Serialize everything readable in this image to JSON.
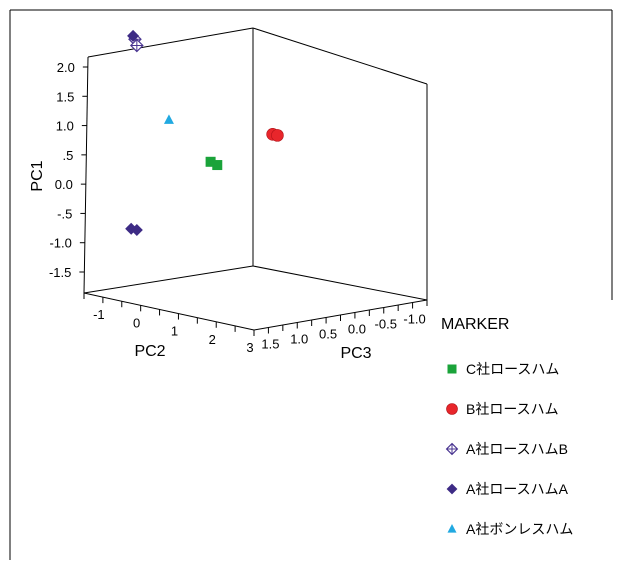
{
  "chart_data": {
    "type": "scatter",
    "dimensions": 3,
    "axes": {
      "pc1": {
        "label": "PC1",
        "ticks": [
          "2.0",
          "1.5",
          "1.0",
          ".5",
          "0.0",
          "-.5",
          "-1.0",
          "-1.5"
        ]
      },
      "pc2": {
        "label": "PC2",
        "ticks": [
          "-1",
          "0",
          "1",
          "2",
          "3"
        ]
      },
      "pc3": {
        "label": "PC3",
        "ticks": [
          "1.5",
          "1.0",
          "0.5",
          "0.0",
          "-0.5",
          "-1.0"
        ]
      }
    },
    "legend": {
      "title": "MARKER",
      "placement": "right",
      "entries": [
        {
          "label": "C社ロースハム",
          "marker": "square",
          "color": "#1aa33a"
        },
        {
          "label": "B社ロースハム",
          "marker": "circle",
          "color": "#e8262b"
        },
        {
          "label": "A社ロースハムB",
          "marker": "diamond-open",
          "color": "#4a3591"
        },
        {
          "label": "A社ロースハムA",
          "marker": "diamond",
          "color": "#3d2b85"
        },
        {
          "label": "A社ボンレスハム",
          "marker": "triangle",
          "color": "#21a9e1"
        }
      ]
    },
    "series": [
      {
        "name": "C社ロースハム",
        "points": [
          {
            "pc1": -0.15,
            "pc2": 2.15,
            "pc3": 1.2
          },
          {
            "pc1": -0.2,
            "pc2": 2.25,
            "pc3": 1.15
          }
        ]
      },
      {
        "name": "B社ロースハム",
        "points": [
          {
            "pc1": 0.3,
            "pc2": 2.8,
            "pc3": 0.55
          },
          {
            "pc1": 0.28,
            "pc2": 2.85,
            "pc3": 0.5
          }
        ]
      },
      {
        "name": "A社ロースハムB",
        "points": [
          {
            "pc1": 1.7,
            "pc2": 0.3,
            "pc3": 1.3
          },
          {
            "pc1": 1.6,
            "pc2": 0.35,
            "pc3": 1.3
          }
        ]
      },
      {
        "name": "A社ロースハムA",
        "points": [
          {
            "pc1": 1.75,
            "pc2": 0.25,
            "pc3": 1.3
          },
          {
            "pc1": -1.55,
            "pc2": 0.2,
            "pc3": 1.3
          },
          {
            "pc1": -1.55,
            "pc2": 0.35,
            "pc3": 1.3
          }
        ]
      },
      {
        "name": "A社ボンレスハム",
        "points": [
          {
            "pc1": 0.45,
            "pc2": 1.2,
            "pc3": 1.3
          }
        ]
      }
    ]
  }
}
